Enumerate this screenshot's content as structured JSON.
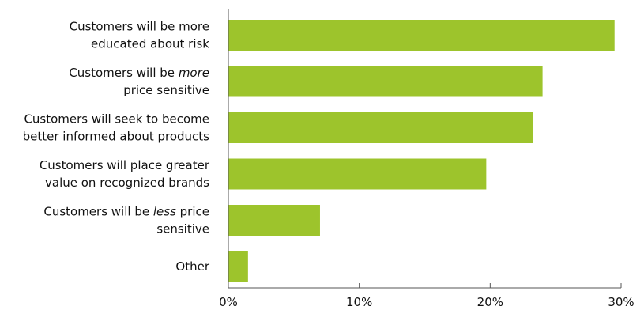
{
  "chart_data": {
    "type": "bar",
    "orientation": "horizontal",
    "categories": [
      [
        "Customers will be more",
        "educated about risk"
      ],
      [
        "Customers will be *more*",
        "price sensitive"
      ],
      [
        "Customers will seek to become",
        "better informed about products"
      ],
      [
        "Customers will place greater",
        "value on recognized brands"
      ],
      [
        "Customers will be *less* price",
        "sensitive"
      ],
      [
        "Other"
      ]
    ],
    "values": [
      29.5,
      24.0,
      23.3,
      19.7,
      7.0,
      1.5
    ],
    "xlim": [
      0,
      30
    ],
    "xticks": [
      0,
      10,
      20,
      30
    ],
    "tick_labels": [
      "0%",
      "10%",
      "20%",
      "30%"
    ],
    "bar_color": "#9dc42c",
    "axis_color": "#555555",
    "grid": false
  }
}
